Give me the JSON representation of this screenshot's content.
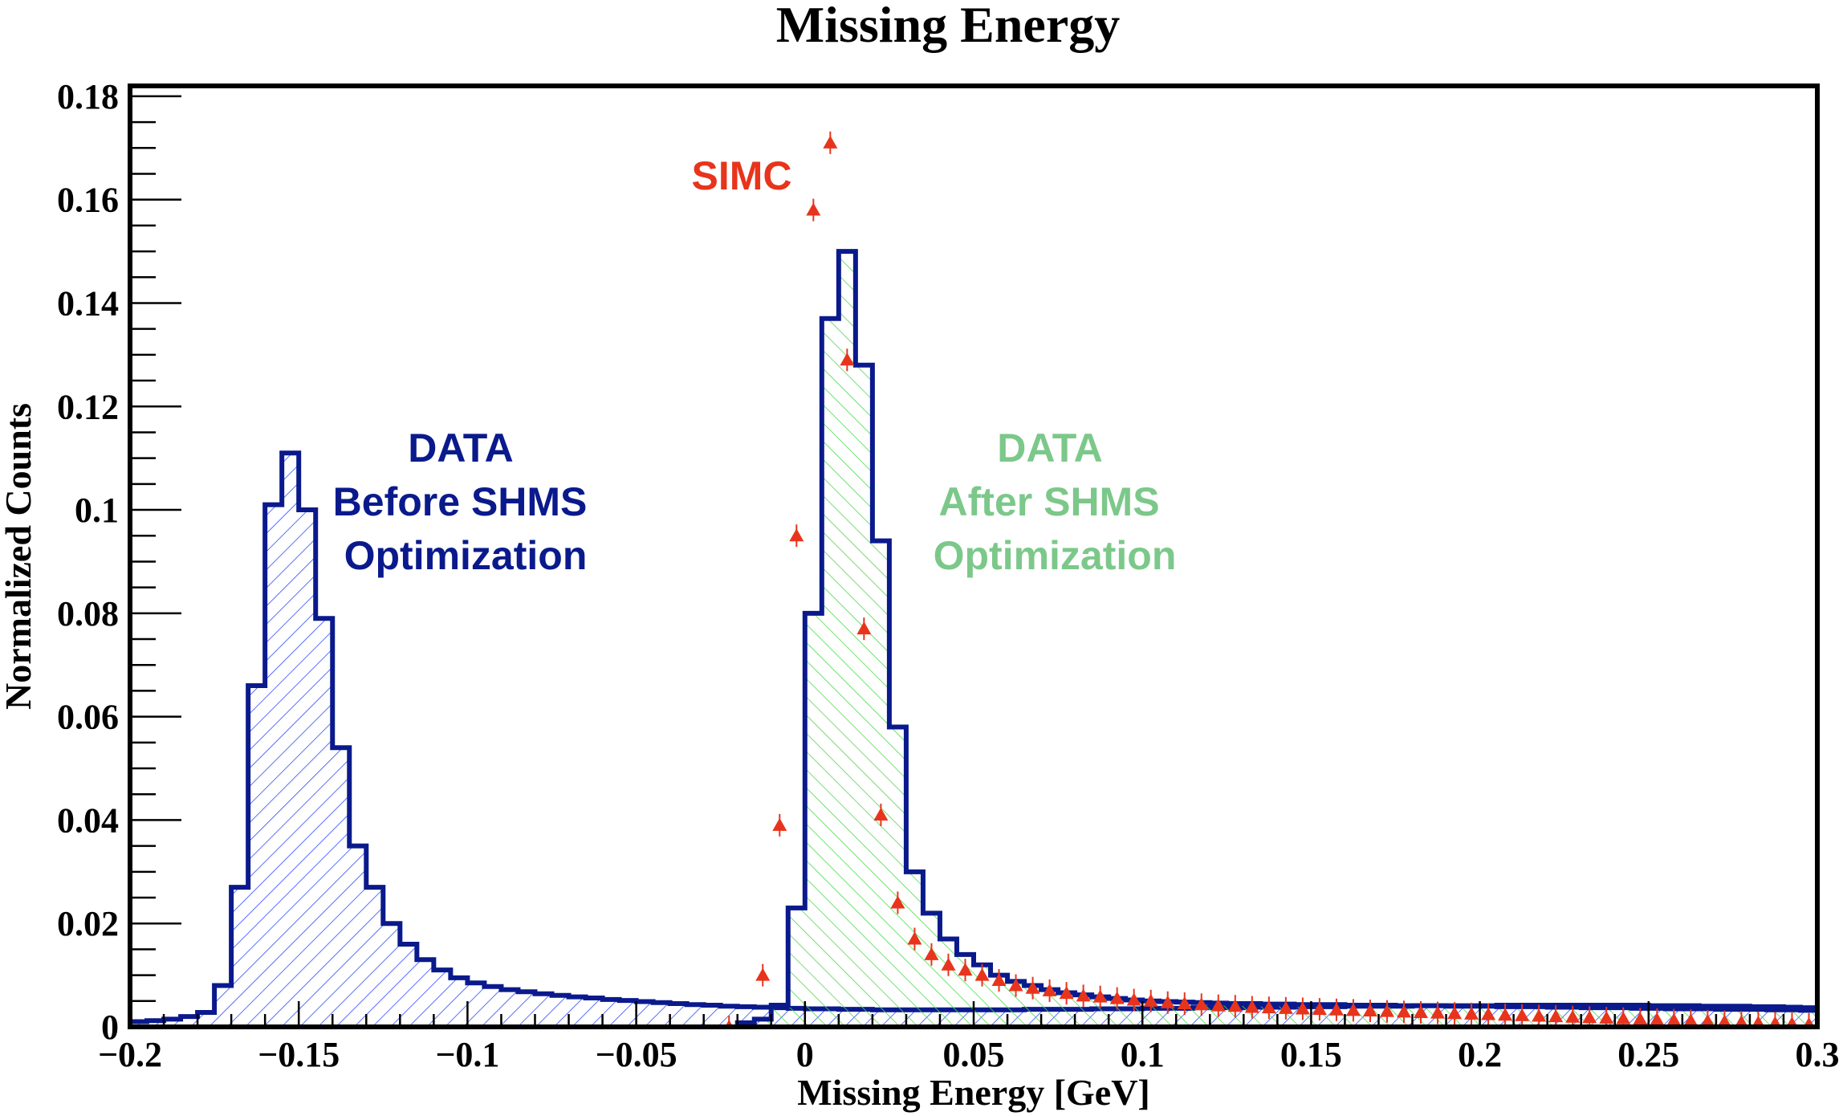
{
  "colors": {
    "data_line": "#0a1a8c",
    "before_hatch": "#2f4cff",
    "after_hatch": "#4fd84f",
    "simc": "#e8341c",
    "after_label": "#7cc88a"
  },
  "chart_data": {
    "type": "histogram",
    "title": "Missing Energy",
    "xlabel": "Missing Energy [GeV]",
    "ylabel": "Normalized Counts",
    "xlim": [
      -0.2,
      0.3
    ],
    "ylim": [
      0,
      0.182
    ],
    "xticks": [
      -0.2,
      -0.15,
      -0.1,
      -0.05,
      0,
      0.05,
      0.1,
      0.15,
      0.2,
      0.25,
      0.3
    ],
    "xtick_labels": [
      "−0.2",
      "−0.15",
      "−0.1",
      "−0.05",
      "0",
      "0.05",
      "0.1",
      "0.15",
      "0.2",
      "0.25",
      "0.3"
    ],
    "yticks": [
      0,
      0.02,
      0.04,
      0.06,
      0.08,
      0.1,
      0.12,
      0.14,
      0.16,
      0.18
    ],
    "ytick_labels": [
      "0",
      "0.02",
      "0.04",
      "0.06",
      "0.08",
      "0.1",
      "0.12",
      "0.14",
      "0.16",
      "0.18"
    ],
    "bin_width": 0.005,
    "series": [
      {
        "name": "DATA Before SHMS Optimization",
        "style": "step-hatched",
        "x_start": -0.2,
        "values": [
          0.001,
          0.0012,
          0.0015,
          0.002,
          0.0028,
          0.008,
          0.027,
          0.066,
          0.101,
          0.111,
          0.1,
          0.079,
          0.054,
          0.035,
          0.027,
          0.02,
          0.016,
          0.013,
          0.011,
          0.0095,
          0.0085,
          0.0078,
          0.0072,
          0.0068,
          0.0064,
          0.0061,
          0.0058,
          0.0056,
          0.0053,
          0.0051,
          0.0049,
          0.0047,
          0.0045,
          0.0043,
          0.0042,
          0.004,
          0.0039,
          0.0038,
          0.0037,
          0.0036,
          0.0035,
          0.0035,
          0.0034,
          0.0034,
          0.0033,
          0.0033,
          0.0033,
          0.0033,
          0.0033,
          0.0033,
          0.0033,
          0.0033,
          0.0033,
          0.0034,
          0.0034,
          0.0034,
          0.0034,
          0.0035,
          0.0035,
          0.0035,
          0.0036,
          0.0036,
          0.0036,
          0.0037,
          0.0037,
          0.0037,
          0.0038,
          0.0038,
          0.0038,
          0.0039,
          0.0039,
          0.0039,
          0.004,
          0.004,
          0.004,
          0.004,
          0.0041,
          0.0041,
          0.0041,
          0.0041,
          0.0041,
          0.0042,
          0.0042,
          0.0042,
          0.0042,
          0.0042,
          0.0042,
          0.0042,
          0.0042,
          0.0042,
          0.0041,
          0.0041,
          0.0041,
          0.004,
          0.004,
          0.004,
          0.0039,
          0.0039,
          0.0038,
          0.0037
        ]
      },
      {
        "name": "DATA After SHMS Optimization",
        "style": "step-hatched",
        "x_start": -0.02,
        "values": [
          0.0008,
          0.0015,
          0.0042,
          0.023,
          0.08,
          0.137,
          0.15,
          0.128,
          0.094,
          0.058,
          0.03,
          0.022,
          0.017,
          0.014,
          0.012,
          0.01,
          0.0088,
          0.008,
          0.0072,
          0.0066,
          0.0062,
          0.0058,
          0.0055,
          0.0052,
          0.005,
          0.0049,
          0.0048,
          0.0047,
          0.0046,
          0.0045,
          0.0045,
          0.0044,
          0.0044,
          0.0043,
          0.0043,
          0.0043,
          0.0042,
          0.0042,
          0.0042,
          0.0041,
          0.0041,
          0.0041,
          0.004,
          0.004,
          0.004,
          0.0039,
          0.0039,
          0.0039,
          0.0038,
          0.0038,
          0.0037,
          0.0037,
          0.0037,
          0.0036,
          0.0036,
          0.0035,
          0.0035,
          0.0035,
          0.0034,
          0.0034,
          0.0034,
          0.0033,
          0.0033,
          0.0032
        ]
      },
      {
        "name": "SIMC",
        "style": "markers-triangle",
        "x": [
          -0.0225,
          -0.0125,
          -0.0075,
          -0.0025,
          0.0025,
          0.0075,
          0.0125,
          0.0175,
          0.0225,
          0.0275,
          0.0325,
          0.0375,
          0.0425,
          0.0475,
          0.0525,
          0.0575,
          0.0625,
          0.0675,
          0.0725,
          0.0775,
          0.0825,
          0.0875,
          0.0925,
          0.0975,
          0.1025,
          0.1075,
          0.1125,
          0.1175,
          0.1225,
          0.1275,
          0.1325,
          0.1375,
          0.1425,
          0.1475,
          0.1525,
          0.1575,
          0.1625,
          0.1675,
          0.1725,
          0.1775,
          0.1825,
          0.1875,
          0.1925,
          0.1975,
          0.2025,
          0.2075,
          0.2125,
          0.2175,
          0.2225,
          0.2275,
          0.2325,
          0.2375,
          0.2425,
          0.2475,
          0.2525,
          0.2575,
          0.2625,
          0.2675,
          0.2725,
          0.2775,
          0.2825,
          0.2875,
          0.2925,
          0.2975
        ],
        "y": [
          0,
          0.01,
          0.039,
          0.095,
          0.158,
          0.171,
          0.129,
          0.077,
          0.041,
          0.024,
          0.017,
          0.014,
          0.012,
          0.011,
          0.01,
          0.009,
          0.008,
          0.0075,
          0.007,
          0.0065,
          0.006,
          0.0058,
          0.0055,
          0.0052,
          0.005,
          0.0047,
          0.0045,
          0.0043,
          0.0041,
          0.004,
          0.0038,
          0.0037,
          0.0036,
          0.0035,
          0.0034,
          0.0033,
          0.0032,
          0.0031,
          0.003,
          0.0029,
          0.0028,
          0.0027,
          0.0026,
          0.0025,
          0.0024,
          0.0023,
          0.0022,
          0.0021,
          0.002,
          0.0019,
          0.0018,
          0.0017,
          0.0016,
          0.0015,
          0.0014,
          0.0013,
          0.0012,
          0.0011,
          0.001,
          0.0009,
          0.0008,
          0.0007,
          0.0006,
          0.0005
        ]
      }
    ],
    "annotations": [
      {
        "name": "before",
        "lines": [
          "DATA",
          "Before SHMS",
          "Optimization"
        ],
        "x": -0.11,
        "y": 0.112
      },
      {
        "name": "after",
        "lines": [
          "DATA",
          "After SHMS",
          "Optimization"
        ],
        "x": 0.075,
        "y": 0.112
      },
      {
        "name": "simc",
        "lines": [
          "SIMC"
        ],
        "x": -0.019,
        "y": 0.163
      }
    ]
  }
}
